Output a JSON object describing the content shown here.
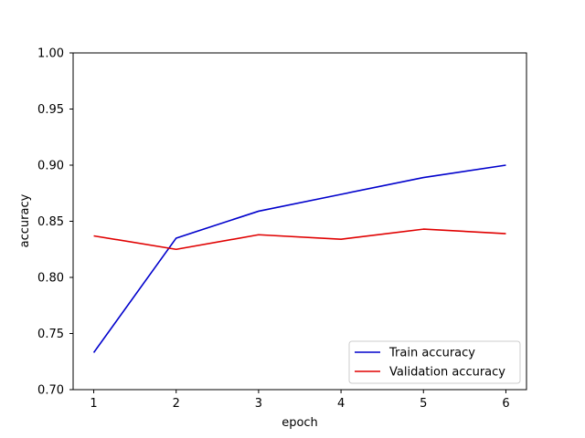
{
  "chart_data": {
    "type": "line",
    "title": "",
    "xlabel": "epoch",
    "ylabel": "accuracy",
    "x": [
      1,
      2,
      3,
      4,
      5,
      6
    ],
    "xlim": [
      0.75,
      6.25
    ],
    "ylim": [
      0.7,
      1.0
    ],
    "xticks": [
      "1",
      "2",
      "3",
      "4",
      "5",
      "6"
    ],
    "yticks": [
      "0.70",
      "0.75",
      "0.80",
      "0.85",
      "0.90",
      "0.95",
      "1.00"
    ],
    "grid": false,
    "legend_position": "lower-right",
    "series": [
      {
        "name": "Train accuracy",
        "color": "#0000cc",
        "values": [
          0.733,
          0.835,
          0.859,
          0.874,
          0.889,
          0.9
        ]
      },
      {
        "name": "Validation accuracy",
        "color": "#e00000",
        "values": [
          0.837,
          0.825,
          0.838,
          0.834,
          0.843,
          0.839
        ]
      }
    ]
  }
}
